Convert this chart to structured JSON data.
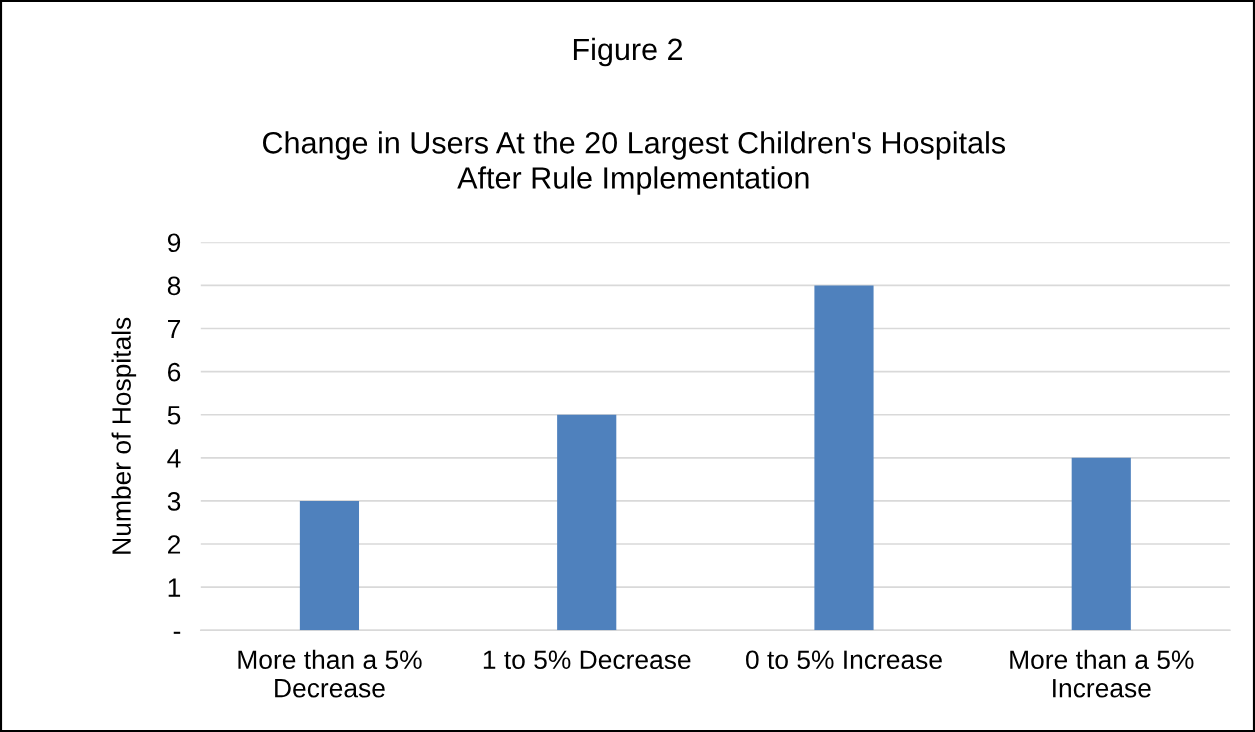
{
  "chart_data": {
    "type": "bar",
    "title": "Figure 2",
    "subtitle": "Change in Users At the 20 Largest Children's Hospitals\nAfter Rule Implementation",
    "ylabel": "Number of Hospitals",
    "categories": [
      "More than a 5%\nDecrease",
      "1 to 5% Decrease",
      "0 to 5% Increase",
      "More than a 5%\nIncrease"
    ],
    "values": [
      3,
      5,
      8,
      4
    ],
    "color": "#4f81bd",
    "ylim": [
      0,
      9
    ],
    "yticks": [
      {
        "value": 0,
        "label": "-"
      },
      1,
      2,
      3,
      4,
      5,
      6,
      7,
      8,
      9
    ],
    "grid": "y"
  }
}
